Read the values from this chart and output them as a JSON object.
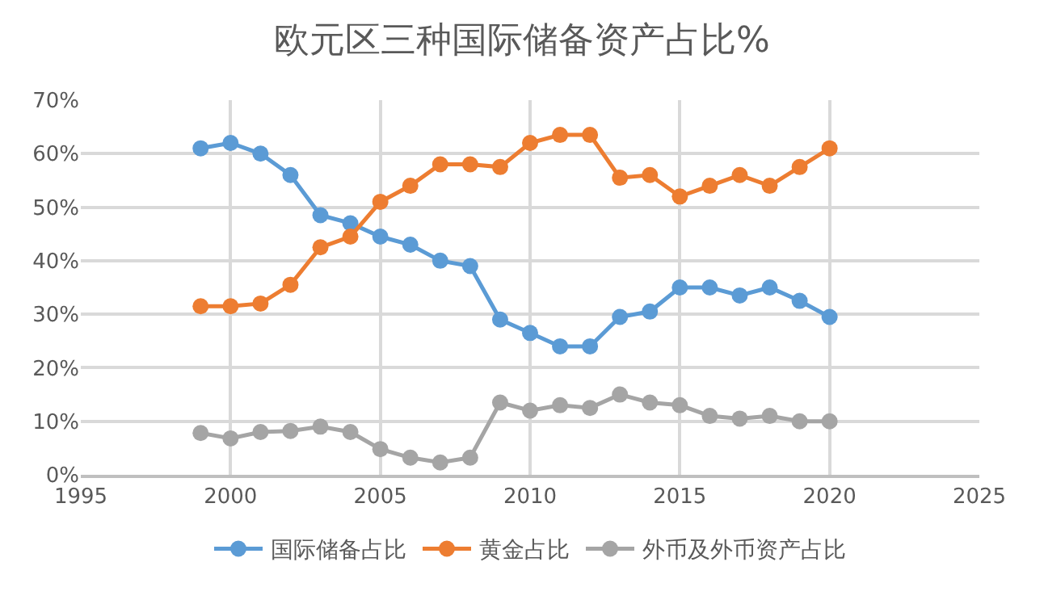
{
  "chart_data": {
    "type": "line",
    "title": "欧元区三种国际储备资产占比%",
    "x": [
      1999,
      2000,
      2001,
      2002,
      2003,
      2004,
      2005,
      2006,
      2007,
      2008,
      2009,
      2010,
      2011,
      2012,
      2013,
      2014,
      2015,
      2016,
      2017,
      2018,
      2019,
      2020
    ],
    "series": [
      {
        "name": "国际储备占比",
        "color": "#5b9bd5",
        "values": [
          61,
          62,
          60,
          56,
          48.5,
          47,
          44.5,
          43,
          40,
          39,
          29,
          26.5,
          24,
          24,
          29.5,
          30.5,
          35,
          35,
          33.5,
          35,
          32.5,
          29.5
        ]
      },
      {
        "name": "黄金占比",
        "color": "#ed7d31",
        "values": [
          31.5,
          31.5,
          32,
          35.5,
          42.5,
          44.5,
          51,
          54,
          58,
          58,
          57.5,
          62,
          63.5,
          63.5,
          55.5,
          56,
          52,
          54,
          56,
          54,
          57.5,
          61
        ]
      },
      {
        "name": "外币及外币资产占比",
        "color": "#a5a5a5",
        "values": [
          7.8,
          6.8,
          8,
          8.2,
          9,
          8,
          4.8,
          3.2,
          2.3,
          3.2,
          13.5,
          12,
          13,
          12.5,
          15,
          13.5,
          13,
          11,
          10.5,
          11,
          10,
          10
        ]
      }
    ],
    "xlim": [
      1995,
      2025
    ],
    "xticks": [
      1995,
      2000,
      2005,
      2010,
      2015,
      2020,
      2025
    ],
    "ylim": [
      0,
      70
    ],
    "yticks": [
      {
        "value": 0,
        "label": "0%"
      },
      {
        "value": 10,
        "label": "10%"
      },
      {
        "value": 20,
        "label": "20%"
      },
      {
        "value": 30,
        "label": "30%"
      },
      {
        "value": 40,
        "label": "40%"
      },
      {
        "value": 50,
        "label": "50%"
      },
      {
        "value": 60,
        "label": "60%"
      },
      {
        "value": 70,
        "label": "70%"
      }
    ],
    "grid": true,
    "legend": "bottom",
    "marker": "circle",
    "line_style": "solid"
  }
}
